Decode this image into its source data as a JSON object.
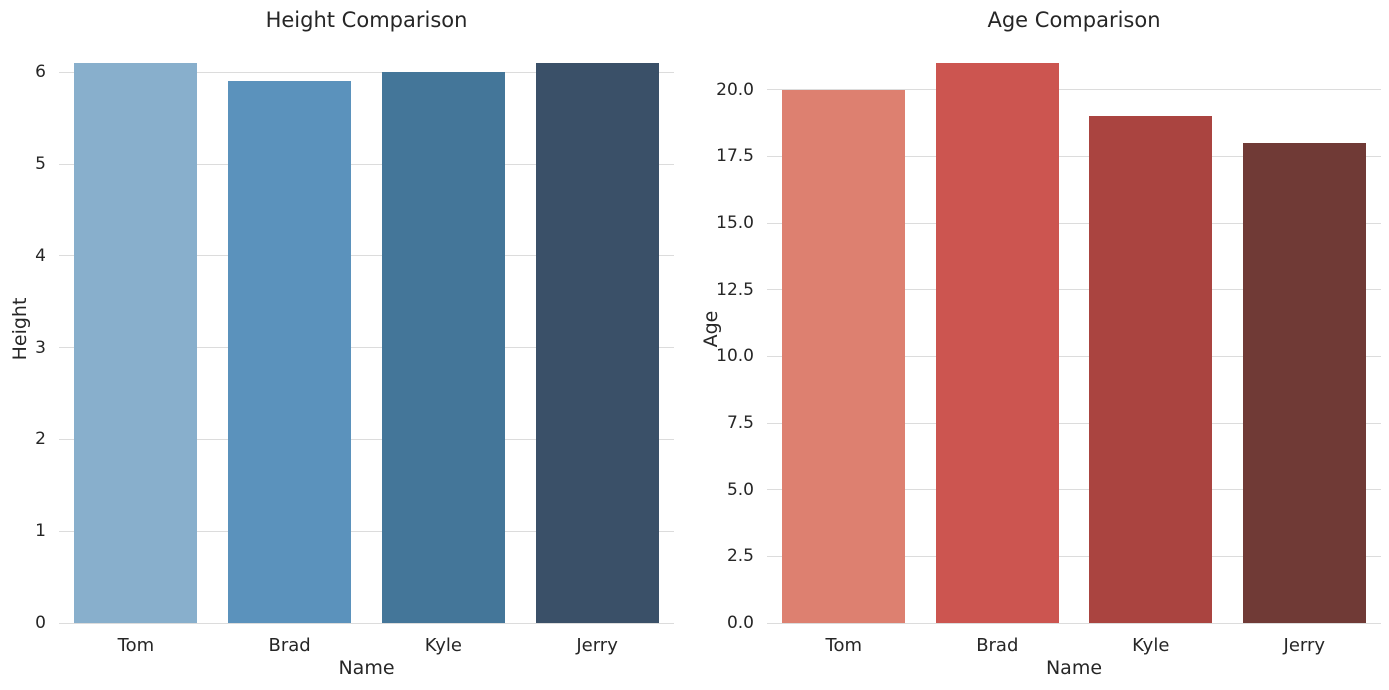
{
  "figure": {
    "background_color": "#ffffff",
    "grid_color": "#dcdcdc",
    "text_color": "#262626"
  },
  "chart_data": [
    {
      "type": "bar",
      "title": "Height Comparison",
      "xlabel": "Name",
      "ylabel": "Height",
      "categories": [
        "Tom",
        "Brad",
        "Kyle",
        "Jerry"
      ],
      "values": [
        6.1,
        5.9,
        6.0,
        6.1
      ],
      "ylim": [
        0,
        6.405
      ],
      "yticks": [
        0,
        1,
        2,
        3,
        4,
        5,
        6
      ],
      "ytick_labels": [
        "0",
        "1",
        "2",
        "3",
        "4",
        "5",
        "6"
      ],
      "bar_colors": [
        "#88AFCC",
        "#5B92BC",
        "#447699",
        "#3A5068"
      ],
      "grid": true,
      "legend": null
    },
    {
      "type": "bar",
      "title": "Age Comparison",
      "xlabel": "Name",
      "ylabel": "Age",
      "categories": [
        "Tom",
        "Brad",
        "Kyle",
        "Jerry"
      ],
      "values": [
        20,
        21,
        19,
        18
      ],
      "ylim": [
        0,
        22.05
      ],
      "yticks": [
        0,
        2.5,
        5,
        7.5,
        10,
        12.5,
        15,
        17.5,
        20
      ],
      "ytick_labels": [
        "0.0",
        "2.5",
        "5.0",
        "7.5",
        "10.0",
        "12.5",
        "15.0",
        "17.5",
        "20.0"
      ],
      "bar_colors": [
        "#DD8070",
        "#CC5550",
        "#AA4440",
        "#703A36"
      ],
      "grid": true,
      "legend": null
    }
  ]
}
